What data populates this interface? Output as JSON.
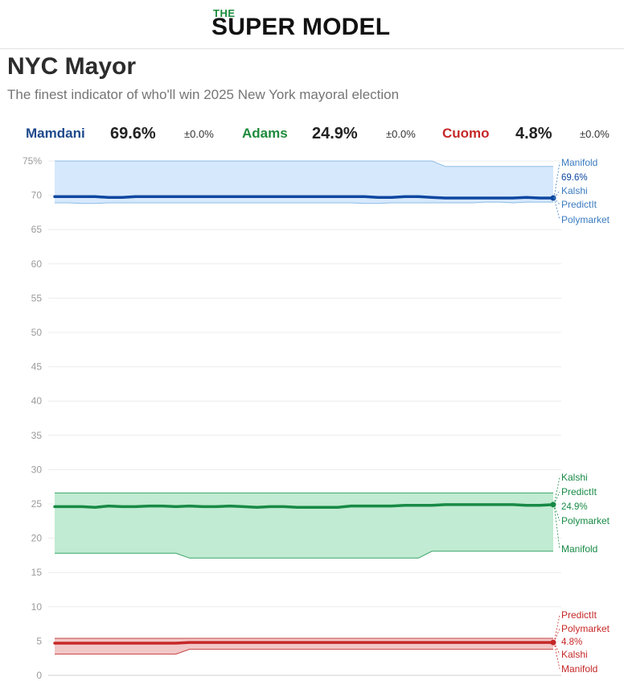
{
  "brand": {
    "small": "THE",
    "big": "SUPER MODEL"
  },
  "page": {
    "title": "NYC Mayor",
    "subtitle": "The finest indicator of who'll win 2025 New York mayoral election"
  },
  "candidates": [
    {
      "name": "Mamdani",
      "value": "69.6%",
      "delta": "±0.0%",
      "color": "#1e4a8c"
    },
    {
      "name": "Adams",
      "value": "24.9%",
      "delta": "±0.0%",
      "color": "#1e8a3c"
    },
    {
      "name": "Cuomo",
      "value": "4.8%",
      "delta": "±0.0%",
      "color": "#c62828"
    }
  ],
  "chart_data": {
    "type": "line",
    "title": "",
    "xlabel": "",
    "ylabel": "",
    "ylim": [
      0,
      75
    ],
    "yticks": [
      "0",
      "5",
      "10",
      "15",
      "20",
      "25",
      "30",
      "35",
      "40",
      "45",
      "50",
      "55",
      "60",
      "65",
      "70",
      "75%"
    ],
    "grid": true,
    "x": [
      0,
      1,
      2,
      3,
      4,
      5,
      6,
      7,
      8,
      9,
      10,
      11,
      12,
      13,
      14,
      15,
      16,
      17,
      18,
      19,
      20,
      21,
      22,
      23,
      24,
      25,
      26,
      27,
      28,
      29,
      30,
      31,
      32,
      33,
      34,
      35,
      36,
      37
    ],
    "series": [
      {
        "name": "Mamdani",
        "color": "#0d47a1",
        "band_fill": "#d6e8fc",
        "band_stroke": "#8fbde6",
        "label_color": "#3b7bbf",
        "end_label": "69.6%",
        "values": [
          69.8,
          69.8,
          69.8,
          69.8,
          69.7,
          69.7,
          69.8,
          69.8,
          69.8,
          69.8,
          69.8,
          69.8,
          69.8,
          69.8,
          69.8,
          69.8,
          69.8,
          69.8,
          69.8,
          69.8,
          69.8,
          69.8,
          69.8,
          69.8,
          69.7,
          69.7,
          69.8,
          69.8,
          69.7,
          69.6,
          69.6,
          69.6,
          69.6,
          69.6,
          69.6,
          69.7,
          69.6,
          69.6
        ],
        "upper": [
          75,
          75,
          75,
          75,
          75,
          75,
          75,
          75,
          75,
          75,
          75,
          75,
          75,
          75,
          75,
          75,
          75,
          75,
          75,
          75,
          75,
          75,
          75,
          75,
          75,
          75,
          75,
          75,
          75,
          74.2,
          74.2,
          74.2,
          74.2,
          74.2,
          74.2,
          74.2,
          74.2,
          74.2
        ],
        "lower": [
          68.9,
          68.9,
          68.8,
          68.8,
          68.9,
          68.9,
          68.9,
          68.9,
          68.9,
          68.9,
          68.9,
          68.9,
          68.9,
          68.9,
          68.9,
          68.9,
          68.9,
          68.9,
          68.9,
          68.9,
          68.9,
          68.9,
          68.9,
          68.8,
          68.8,
          68.9,
          68.9,
          68.9,
          68.9,
          68.9,
          68.9,
          68.9,
          69.0,
          69.0,
          68.9,
          69.0,
          69.0,
          69.0
        ],
        "sources": [
          "Manifold",
          "Kalshi",
          "PredictIt",
          "Polymarket"
        ]
      },
      {
        "name": "Adams",
        "color": "#178a45",
        "band_fill": "#c1ebd2",
        "band_stroke": "#3aa468",
        "label_color": "#178a45",
        "end_label": "24.9%",
        "values": [
          24.6,
          24.6,
          24.6,
          24.5,
          24.7,
          24.6,
          24.6,
          24.7,
          24.7,
          24.6,
          24.7,
          24.6,
          24.6,
          24.7,
          24.6,
          24.5,
          24.6,
          24.6,
          24.5,
          24.5,
          24.5,
          24.5,
          24.7,
          24.7,
          24.7,
          24.7,
          24.8,
          24.8,
          24.8,
          24.9,
          24.9,
          24.9,
          24.9,
          24.9,
          24.9,
          24.8,
          24.8,
          24.9
        ],
        "upper": [
          26.6,
          26.6,
          26.6,
          26.6,
          26.6,
          26.6,
          26.6,
          26.6,
          26.6,
          26.6,
          26.6,
          26.6,
          26.6,
          26.6,
          26.6,
          26.6,
          26.6,
          26.6,
          26.6,
          26.6,
          26.6,
          26.6,
          26.6,
          26.6,
          26.6,
          26.6,
          26.6,
          26.6,
          26.6,
          26.6,
          26.6,
          26.6,
          26.6,
          26.6,
          26.6,
          26.6,
          26.6,
          26.6
        ],
        "lower": [
          17.8,
          17.8,
          17.8,
          17.8,
          17.8,
          17.8,
          17.8,
          17.8,
          17.8,
          17.8,
          17.1,
          17.1,
          17.1,
          17.1,
          17.1,
          17.1,
          17.1,
          17.1,
          17.1,
          17.1,
          17.1,
          17.1,
          17.1,
          17.1,
          17.1,
          17.1,
          17.1,
          17.1,
          18.1,
          18.1,
          18.1,
          18.1,
          18.1,
          18.1,
          18.1,
          18.1,
          18.1,
          18.1
        ],
        "sources": [
          "Kalshi",
          "PredictIt",
          "Polymarket",
          "Manifold"
        ]
      },
      {
        "name": "Cuomo",
        "color": "#c62828",
        "band_fill": "#f2c7c7",
        "band_stroke": "#c64545",
        "label_color": "#c62828",
        "end_label": "4.8%",
        "values": [
          4.7,
          4.7,
          4.7,
          4.7,
          4.7,
          4.7,
          4.7,
          4.7,
          4.7,
          4.7,
          4.8,
          4.8,
          4.8,
          4.8,
          4.8,
          4.8,
          4.8,
          4.8,
          4.8,
          4.8,
          4.8,
          4.8,
          4.8,
          4.8,
          4.8,
          4.8,
          4.8,
          4.8,
          4.8,
          4.8,
          4.8,
          4.8,
          4.8,
          4.8,
          4.8,
          4.8,
          4.8,
          4.8
        ],
        "upper": [
          5.4,
          5.4,
          5.4,
          5.4,
          5.4,
          5.4,
          5.4,
          5.4,
          5.4,
          5.4,
          5.4,
          5.4,
          5.4,
          5.4,
          5.4,
          5.4,
          5.4,
          5.4,
          5.4,
          5.4,
          5.4,
          5.4,
          5.4,
          5.4,
          5.4,
          5.4,
          5.4,
          5.4,
          5.4,
          5.4,
          5.4,
          5.4,
          5.4,
          5.4,
          5.4,
          5.4,
          5.4,
          5.4
        ],
        "lower": [
          3.1,
          3.1,
          3.1,
          3.1,
          3.1,
          3.1,
          3.1,
          3.1,
          3.1,
          3.1,
          3.8,
          3.8,
          3.8,
          3.8,
          3.8,
          3.8,
          3.8,
          3.8,
          3.8,
          3.8,
          3.8,
          3.8,
          3.8,
          3.8,
          3.8,
          3.8,
          3.8,
          3.8,
          3.8,
          3.8,
          3.8,
          3.8,
          3.8,
          3.8,
          3.8,
          3.8,
          3.8,
          3.8
        ],
        "sources": [
          "PredictIt",
          "Polymarket",
          "Kalshi",
          "Manifold"
        ]
      }
    ]
  }
}
